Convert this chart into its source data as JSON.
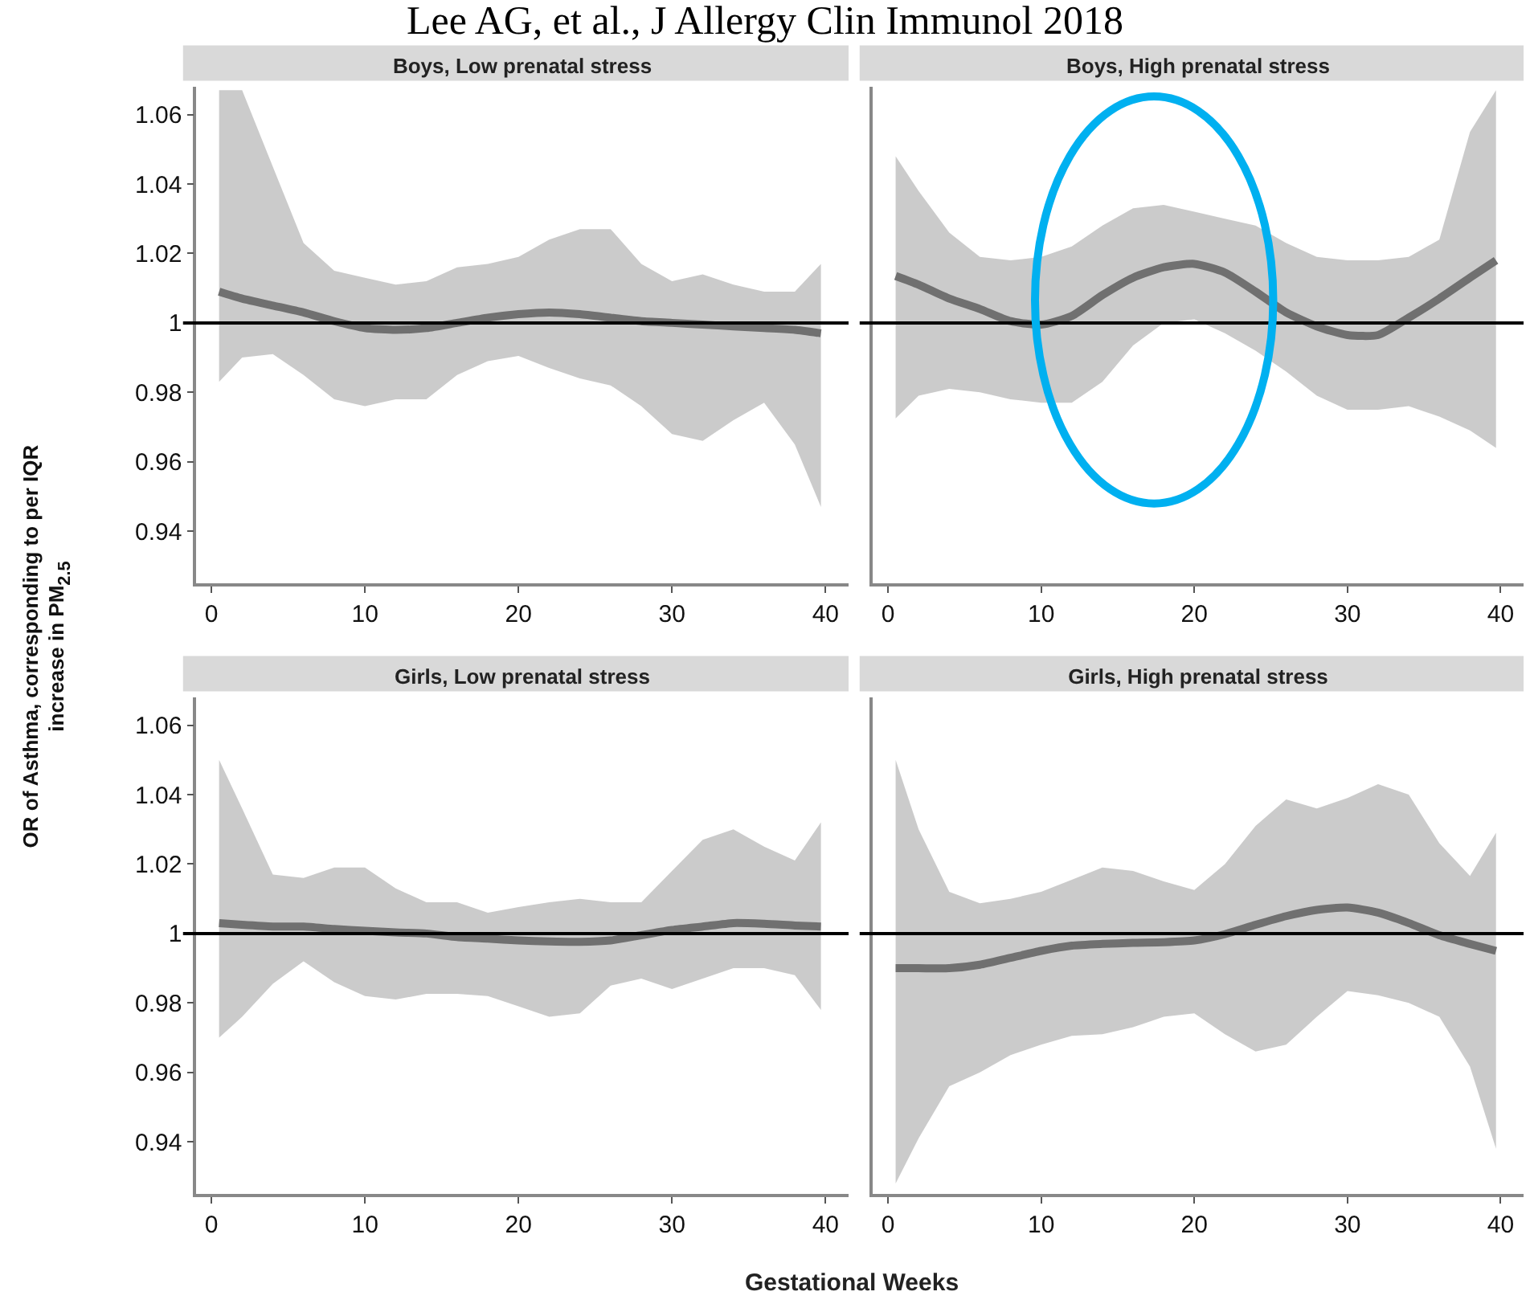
{
  "chart_data": [
    {
      "type": "line",
      "title": "Boys, Low prenatal stress",
      "ylabel": "OR of Asthma, corresponding to per IQR increase in PM$_{2.5}$",
      "annotations": [
        "Lee AG, et al., J Allergy Clin Immunol 2018"
      ],
      "x": [
        0.5,
        2,
        4,
        6,
        8,
        10,
        12,
        14,
        16,
        18,
        20,
        22,
        24,
        26,
        28,
        30,
        32,
        34,
        36,
        38,
        39.7
      ],
      "xlim": [
        -1,
        41.5
      ],
      "ylim": [
        0.925,
        1.068
      ],
      "xticks": [
        0,
        10,
        20,
        30,
        40
      ],
      "yticks": [
        0.94,
        0.96,
        0.98,
        1,
        1.02,
        1.04,
        1.06
      ],
      "ref_lines": [
        {
          "axis": "y",
          "value": 1,
          "color": "#000000"
        }
      ],
      "series": [
        {
          "color": "#707070",
          "values": [
            1.009,
            1.007,
            1.005,
            1.003,
            1.0005,
            0.9985,
            0.998,
            0.9985,
            1.0,
            1.0015,
            1.0025,
            1.003,
            1.0025,
            1.0015,
            1.0005,
            1.0,
            0.9995,
            0.999,
            0.9985,
            0.998,
            0.997
          ],
          "lower": [
            0.983,
            0.99,
            0.991,
            0.985,
            0.978,
            0.976,
            0.978,
            0.978,
            0.985,
            0.989,
            0.9905,
            0.987,
            0.984,
            0.982,
            0.976,
            0.968,
            0.966,
            0.972,
            0.977,
            0.965,
            0.947
          ],
          "upper": [
            1.067,
            1.067,
            1.045,
            1.023,
            1.015,
            1.013,
            1.011,
            1.012,
            1.016,
            1.017,
            1.019,
            1.024,
            1.027,
            1.027,
            1.017,
            1.012,
            1.014,
            1.011,
            1.009,
            1.009,
            1.017
          ]
        }
      ]
    },
    {
      "type": "line",
      "title": "Boys, High prenatal stress",
      "x": [
        0.5,
        2,
        4,
        6,
        8,
        10,
        12,
        14,
        16,
        18,
        20,
        22,
        24,
        26,
        28,
        30,
        32,
        34,
        36,
        38,
        39.7
      ],
      "xlim": [
        -1,
        41.5
      ],
      "ylim": [
        0.925,
        1.068
      ],
      "xticks": [
        0,
        10,
        20,
        30,
        40
      ],
      "yticks": [
        0.94,
        0.96,
        0.98,
        1,
        1.02,
        1.04,
        1.06
      ],
      "tick_labels": "x",
      "ref_lines": [
        {
          "axis": "y",
          "value": 1,
          "color": "#000000"
        }
      ],
      "series": [
        {
          "color": "#707070",
          "values": [
            1.0135,
            1.011,
            1.007,
            1.004,
            1.0005,
            0.9995,
            1.002,
            1.008,
            1.013,
            1.016,
            1.017,
            1.0145,
            1.009,
            1.003,
            0.999,
            0.9965,
            0.9965,
            1.0015,
            1.007,
            1.013,
            1.018
          ],
          "lower": [
            0.9725,
            0.979,
            0.981,
            0.98,
            0.978,
            0.977,
            0.977,
            0.983,
            0.9935,
            1.0,
            1.001,
            0.997,
            0.992,
            0.986,
            0.979,
            0.975,
            0.975,
            0.976,
            0.973,
            0.969,
            0.964
          ],
          "upper": [
            1.048,
            1.038,
            1.026,
            1.019,
            1.018,
            1.019,
            1.022,
            1.028,
            1.033,
            1.034,
            1.032,
            1.03,
            1.028,
            1.023,
            1.019,
            1.018,
            1.018,
            1.019,
            1.024,
            1.055,
            1.067
          ]
        }
      ]
    },
    {
      "type": "line",
      "title": "Girls, Low prenatal stress",
      "xlabel": "Gestational Weeks",
      "x": [
        0.5,
        2,
        4,
        6,
        8,
        10,
        12,
        14,
        16,
        18,
        20,
        22,
        24,
        26,
        28,
        30,
        32,
        34,
        36,
        38,
        39.7
      ],
      "xlim": [
        -1,
        41.5
      ],
      "ylim": [
        0.925,
        1.068
      ],
      "xticks": [
        0,
        10,
        20,
        30,
        40
      ],
      "yticks": [
        0.94,
        0.96,
        0.98,
        1,
        1.02,
        1.04,
        1.06
      ],
      "ref_lines": [
        {
          "axis": "y",
          "value": 1,
          "color": "#000000"
        }
      ],
      "series": [
        {
          "color": "#707070",
          "values": [
            1.003,
            1.0025,
            1.002,
            1.002,
            1.0013,
            1.0008,
            1.0003,
            1.0,
            0.999,
            0.9985,
            0.998,
            0.9977,
            0.9976,
            0.998,
            0.9995,
            1.001,
            1.002,
            1.003,
            1.0028,
            1.0023,
            1.002
          ],
          "lower": [
            0.97,
            0.976,
            0.9855,
            0.992,
            0.986,
            0.982,
            0.981,
            0.9826,
            0.9826,
            0.982,
            0.979,
            0.976,
            0.977,
            0.985,
            0.987,
            0.984,
            0.987,
            0.99,
            0.99,
            0.988,
            0.978
          ],
          "upper": [
            1.05,
            1.036,
            1.017,
            1.016,
            1.019,
            1.019,
            1.013,
            1.009,
            1.009,
            1.006,
            1.0076,
            1.009,
            1.01,
            1.009,
            1.009,
            1.018,
            1.027,
            1.03,
            1.025,
            1.021,
            1.032
          ]
        }
      ]
    },
    {
      "type": "line",
      "title": "Girls, High prenatal stress",
      "x": [
        0.5,
        2,
        4,
        6,
        8,
        10,
        12,
        14,
        16,
        18,
        20,
        22,
        24,
        26,
        28,
        30,
        32,
        34,
        36,
        38,
        39.7
      ],
      "xlim": [
        -1,
        41.5
      ],
      "ylim": [
        0.925,
        1.068
      ],
      "xticks": [
        0,
        10,
        20,
        30,
        40
      ],
      "yticks": [
        0.94,
        0.96,
        0.98,
        1,
        1.02,
        1.04,
        1.06
      ],
      "tick_labels": "x",
      "ref_lines": [
        {
          "axis": "y",
          "value": 1,
          "color": "#000000"
        }
      ],
      "series": [
        {
          "color": "#707070",
          "values": [
            0.99,
            0.99,
            0.99,
            0.991,
            0.993,
            0.995,
            0.9965,
            0.997,
            0.9973,
            0.9975,
            0.998,
            0.9998,
            1.0025,
            1.005,
            1.0068,
            1.0075,
            1.006,
            1.003,
            0.9995,
            0.997,
            0.995
          ],
          "lower": [
            0.928,
            0.941,
            0.956,
            0.96,
            0.965,
            0.968,
            0.9705,
            0.971,
            0.973,
            0.976,
            0.977,
            0.971,
            0.966,
            0.968,
            0.976,
            0.9834,
            0.9822,
            0.98,
            0.976,
            0.9617,
            0.938
          ],
          "upper": [
            1.05,
            1.03,
            1.012,
            1.0087,
            1.01,
            1.012,
            1.0155,
            1.019,
            1.018,
            1.015,
            1.0125,
            1.02,
            1.031,
            1.0386,
            1.036,
            1.039,
            1.043,
            1.04,
            1.026,
            1.0166,
            1.029
          ]
        }
      ]
    }
  ]
}
